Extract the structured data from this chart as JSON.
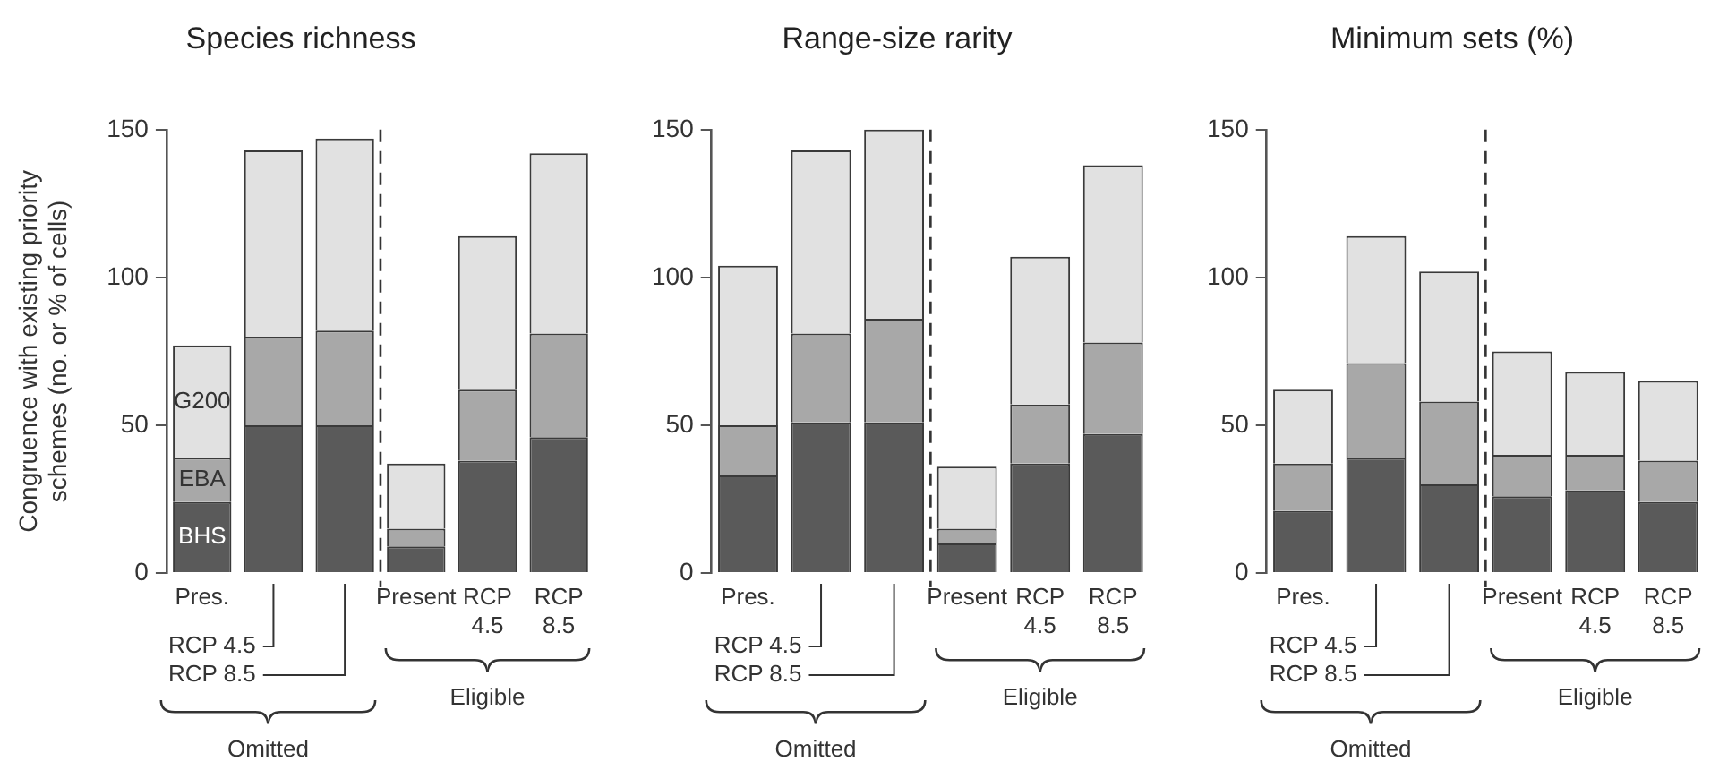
{
  "chart_data": [
    {
      "type": "bar",
      "title": "Species richness",
      "ylabel": "Congruence with existing priority schemes (no. or % of cells)",
      "stacked": true,
      "categories": [
        "Pres.",
        null,
        null,
        "Present",
        "RCP 4.5",
        "RCP 8.5"
      ],
      "series": [
        {
          "name": "BHS",
          "color": "#5a5a5a",
          "values": [
            24,
            50,
            50,
            9,
            38,
            46
          ]
        },
        {
          "name": "EBA",
          "color": "#a8a8a8",
          "values": [
            15,
            30,
            32,
            6,
            24,
            35
          ]
        },
        {
          "name": "G200",
          "color": "#e1e1e1",
          "values": [
            38,
            63,
            65,
            22,
            52,
            61
          ]
        }
      ],
      "ylim": [
        0,
        150
      ],
      "yticks": [
        0,
        50,
        100,
        150
      ],
      "grid": false,
      "legend": false,
      "annotations": [
        "RCP 4.5",
        "RCP 8.5",
        "Omitted",
        "Eligible"
      ]
    },
    {
      "type": "bar",
      "title": "Range-size rarity",
      "stacked": true,
      "categories": [
        "Pres.",
        null,
        null,
        "Present",
        "RCP 4.5",
        "RCP 8.5"
      ],
      "series": [
        {
          "color": "#5a5a5a",
          "values": [
            33,
            51,
            51,
            10,
            37,
            47
          ]
        },
        {
          "color": "#a8a8a8",
          "values": [
            17,
            30,
            35,
            5,
            20,
            31
          ]
        },
        {
          "color": "#e1e1e1",
          "values": [
            54,
            62,
            64,
            21,
            50,
            60
          ]
        }
      ],
      "ylim": [
        0,
        150
      ],
      "yticks": [
        0,
        50,
        100,
        150
      ],
      "grid": false,
      "legend": false,
      "annotations": [
        "RCP 4.5",
        "RCP 8.5",
        "Omitted",
        "Eligible"
      ]
    },
    {
      "type": "bar",
      "title": "Minimum sets (%)",
      "stacked": true,
      "categories": [
        "Pres.",
        null,
        null,
        "Present",
        "RCP 4.5",
        "RCP 8.5"
      ],
      "series": [
        {
          "color": "#5a5a5a",
          "values": [
            21,
            39,
            30,
            26,
            28,
            24
          ]
        },
        {
          "color": "#a8a8a8",
          "values": [
            16,
            32,
            28,
            14,
            12,
            14
          ]
        },
        {
          "color": "#e1e1e1",
          "values": [
            25,
            43,
            44,
            35,
            28,
            27
          ]
        }
      ],
      "ylim": [
        0,
        150
      ],
      "yticks": [
        0,
        50,
        100,
        150
      ],
      "grid": false,
      "legend": false,
      "annotations": [
        "RCP 4.5",
        "RCP 8.5",
        "Omitted",
        "Eligible"
      ]
    }
  ]
}
